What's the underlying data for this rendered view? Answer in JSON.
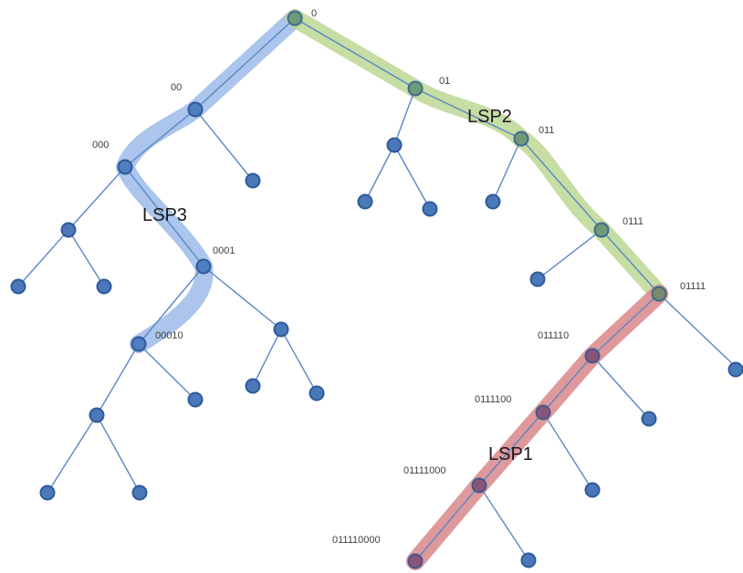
{
  "colors": {
    "edge": "#5b87c5",
    "node_fill": "#4a78b9",
    "node_stroke": "#2f5a99",
    "lsp1": "#d9878a",
    "lsp2": "#bcd793",
    "lsp3": "#9cbbe9",
    "lsp1_node": "#8a5478",
    "lsp2_node": "#6f9a78",
    "lsp3_node": "#4f7fc1"
  },
  "node_labels": {
    "root": "0",
    "n00": "00",
    "n01": "01",
    "n000": "000",
    "n011": "011",
    "n0001": "0001",
    "n0111": "0111",
    "n00010": "00010",
    "n01111": "01111",
    "n011110": "011110",
    "n0111100": "0111100",
    "n01111000": "01111000",
    "n011110000": "011110000"
  },
  "paths": {
    "lsp1": "LSP1",
    "lsp2": "LSP2",
    "lsp3": "LSP3"
  }
}
